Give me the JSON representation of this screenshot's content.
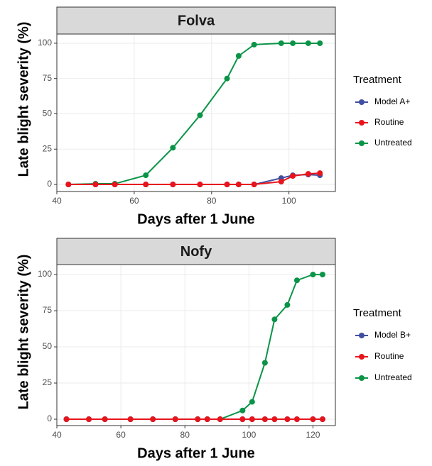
{
  "chart_data": [
    {
      "type": "line",
      "title": "Folva",
      "x_label": "Days after 1 June",
      "y_label": "Late blight severity (%)",
      "legend_title": "Treatment",
      "grid": true,
      "xlim": [
        40,
        112
      ],
      "xticks": [
        40,
        60,
        80,
        100
      ],
      "ylim": [
        -5,
        106.5
      ],
      "yticks": [
        0,
        25,
        50,
        75,
        100
      ],
      "series": [
        {
          "name": "Model A+",
          "color": "#3f4fa0",
          "x": [
            43,
            50,
            55,
            63,
            70,
            77,
            84,
            87,
            91,
            98,
            101,
            105,
            108
          ],
          "values": [
            0,
            0,
            0,
            0,
            0,
            0,
            0,
            0,
            0,
            4.5,
            6.5,
            7,
            6.5
          ]
        },
        {
          "name": "Routine",
          "color": "#e8141c",
          "x": [
            43,
            50,
            55,
            63,
            70,
            77,
            84,
            87,
            91,
            98,
            101,
            105,
            108
          ],
          "values": [
            0,
            0,
            0,
            0,
            0,
            0,
            0,
            0,
            0,
            2,
            6,
            7.5,
            8
          ]
        },
        {
          "name": "Untreated",
          "color": "#0a9447",
          "x": [
            43,
            50,
            55,
            63,
            70,
            77,
            84,
            87,
            91,
            98,
            101,
            105,
            108
          ],
          "values": [
            0,
            0.5,
            0.5,
            6.5,
            26,
            49,
            75,
            91,
            99,
            100,
            100,
            100,
            100
          ]
        }
      ]
    },
    {
      "type": "line",
      "title": "Nofy",
      "x_label": "Days after 1 June",
      "y_label": "Late blight severity (%)",
      "legend_title": "Treatment",
      "grid": true,
      "xlim": [
        40,
        127
      ],
      "xticks": [
        40,
        60,
        80,
        100,
        120
      ],
      "ylim": [
        -4.4,
        106.9
      ],
      "yticks": [
        0,
        25,
        50,
        75,
        100
      ],
      "series": [
        {
          "name": "Model B+",
          "color": "#3f4fa0",
          "x": [
            43,
            50,
            55,
            63,
            70,
            77,
            84,
            87,
            91,
            98,
            101,
            105,
            108,
            112,
            115,
            120,
            123
          ],
          "values": [
            0,
            0,
            0,
            0,
            0,
            0,
            0,
            0,
            0,
            0,
            0,
            0,
            0,
            0,
            0,
            0,
            0
          ]
        },
        {
          "name": "Routine",
          "color": "#e8141c",
          "x": [
            43,
            50,
            55,
            63,
            70,
            77,
            84,
            87,
            91,
            98,
            101,
            105,
            108,
            112,
            115,
            120,
            123
          ],
          "values": [
            0,
            0,
            0,
            0,
            0,
            0,
            0,
            0,
            0,
            0,
            0,
            0,
            0,
            0,
            0,
            0,
            0
          ]
        },
        {
          "name": "Untreated",
          "color": "#0a9447",
          "x": [
            43,
            50,
            55,
            63,
            70,
            77,
            84,
            87,
            91,
            98,
            101,
            105,
            108,
            112,
            115,
            120,
            123
          ],
          "values": [
            0,
            0,
            0,
            0,
            0,
            0,
            0,
            0,
            0,
            6,
            12,
            39,
            69,
            79,
            96,
            100,
            100
          ]
        }
      ]
    }
  ]
}
